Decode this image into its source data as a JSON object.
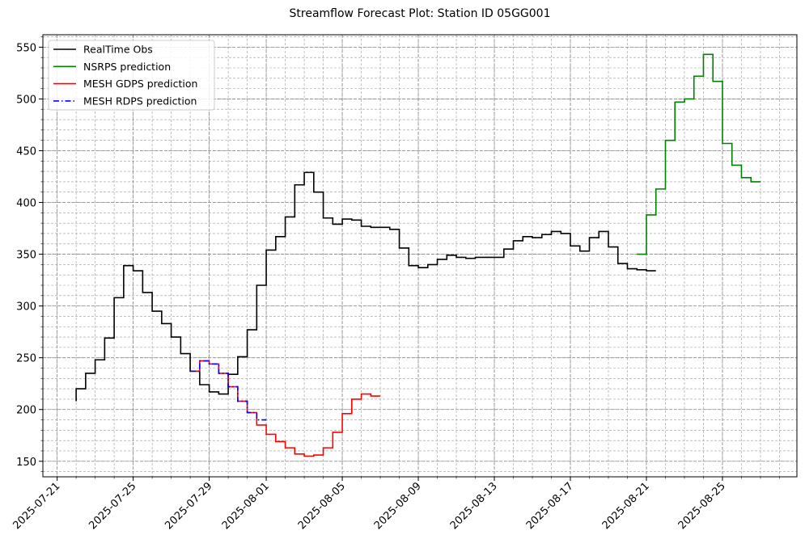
{
  "chart_data": {
    "type": "line",
    "drawstyle": "steps-pre",
    "title": "Streamflow Forecast Plot: Station ID 05GG001",
    "xlim": [
      "2025-07-20 06:00",
      "2025-08-28 22:00"
    ],
    "ylim": [
      135,
      562
    ],
    "xticks": [
      "2025-07-21",
      "2025-07-25",
      "2025-07-29",
      "2025-08-01",
      "2025-08-05",
      "2025-08-09",
      "2025-08-13",
      "2025-08-17",
      "2025-08-21",
      "2025-08-25"
    ],
    "yticks": [
      150,
      200,
      250,
      300,
      350,
      400,
      450,
      500,
      550
    ],
    "grid": true,
    "minor_grid": true,
    "legend": "upper left",
    "series": [
      {
        "name": "RealTime Obs",
        "color": "#000000",
        "linestyle": "solid",
        "x": [
          "2025-07-22",
          "2025-07-22 12:00",
          "2025-07-23",
          "2025-07-23 12:00",
          "2025-07-24",
          "2025-07-24 12:00",
          "2025-07-25",
          "2025-07-25 12:00",
          "2025-07-26",
          "2025-07-26 12:00",
          "2025-07-27",
          "2025-07-27 12:00",
          "2025-07-28",
          "2025-07-28 12:00",
          "2025-07-29",
          "2025-07-29 12:00",
          "2025-07-30",
          "2025-07-30 12:00",
          "2025-07-31",
          "2025-07-31 12:00",
          "2025-08-01",
          "2025-08-01 12:00",
          "2025-08-02",
          "2025-08-02 12:00",
          "2025-08-03",
          "2025-08-03 12:00",
          "2025-08-04",
          "2025-08-04 12:00",
          "2025-08-05",
          "2025-08-05 12:00",
          "2025-08-06",
          "2025-08-06 12:00",
          "2025-08-07",
          "2025-08-07 12:00",
          "2025-08-08",
          "2025-08-08 12:00",
          "2025-08-09",
          "2025-08-09 12:00",
          "2025-08-10",
          "2025-08-10 12:00",
          "2025-08-11",
          "2025-08-11 12:00",
          "2025-08-12",
          "2025-08-12 12:00",
          "2025-08-13",
          "2025-08-13 12:00",
          "2025-08-14",
          "2025-08-14 12:00",
          "2025-08-15",
          "2025-08-15 12:00",
          "2025-08-16",
          "2025-08-16 12:00",
          "2025-08-17",
          "2025-08-17 12:00",
          "2025-08-18",
          "2025-08-18 12:00",
          "2025-08-19",
          "2025-08-19 12:00",
          "2025-08-20",
          "2025-08-20 12:00",
          "2025-08-21",
          "2025-08-21 12:00"
        ],
        "values": [
          208,
          220,
          235,
          248,
          269,
          308,
          339,
          334,
          313,
          295,
          283,
          270,
          254,
          237,
          224,
          217,
          215,
          234,
          251,
          277,
          320,
          354,
          367,
          386,
          417,
          429,
          410,
          385,
          379,
          384,
          383,
          377,
          376,
          376,
          374,
          356,
          339,
          337,
          340,
          345,
          349,
          347,
          346,
          347,
          347,
          347,
          355,
          363,
          367,
          366,
          369,
          372,
          370,
          358,
          353,
          366,
          372,
          357,
          341,
          336,
          335,
          334
        ]
      },
      {
        "name": "NSRPS prediction",
        "color": "#008000",
        "linestyle": "solid",
        "x": [
          "2025-08-20 12:00",
          "2025-08-21",
          "2025-08-21 12:00",
          "2025-08-22",
          "2025-08-22 12:00",
          "2025-08-23",
          "2025-08-23 12:00",
          "2025-08-24",
          "2025-08-24 12:00",
          "2025-08-25",
          "2025-08-25 12:00",
          "2025-08-26",
          "2025-08-26 12:00",
          "2025-08-27"
        ],
        "values": [
          350,
          350,
          388,
          413,
          460,
          497,
          500,
          522,
          543,
          517,
          457,
          436,
          424,
          420
        ]
      },
      {
        "name": "MESH GDPS prediction",
        "color": "#ff0000",
        "linestyle": "solid",
        "x": [
          "2025-07-28",
          "2025-07-28 12:00",
          "2025-07-29",
          "2025-07-29 12:00",
          "2025-07-30",
          "2025-07-30 12:00",
          "2025-07-31",
          "2025-07-31 12:00",
          "2025-08-01",
          "2025-08-01 12:00",
          "2025-08-02",
          "2025-08-02 12:00",
          "2025-08-03",
          "2025-08-03 12:00",
          "2025-08-04",
          "2025-08-04 12:00",
          "2025-08-05",
          "2025-08-05 12:00",
          "2025-08-06",
          "2025-08-06 12:00",
          "2025-08-07"
        ],
        "values": [
          237,
          237,
          247,
          244,
          235,
          222,
          208,
          197,
          185,
          176,
          169,
          163,
          157,
          155,
          156,
          163,
          178,
          196,
          210,
          215,
          213
        ]
      },
      {
        "name": "MESH RDPS prediction",
        "color": "#0000ff",
        "linestyle": "dashdot",
        "x": [
          "2025-07-28",
          "2025-07-28 12:00",
          "2025-07-29",
          "2025-07-29 12:00",
          "2025-07-30",
          "2025-07-30 12:00",
          "2025-07-31",
          "2025-07-31 12:00",
          "2025-08-01"
        ],
        "values": [
          237,
          237,
          247,
          244,
          235,
          222,
          208,
          197,
          190
        ]
      }
    ]
  }
}
